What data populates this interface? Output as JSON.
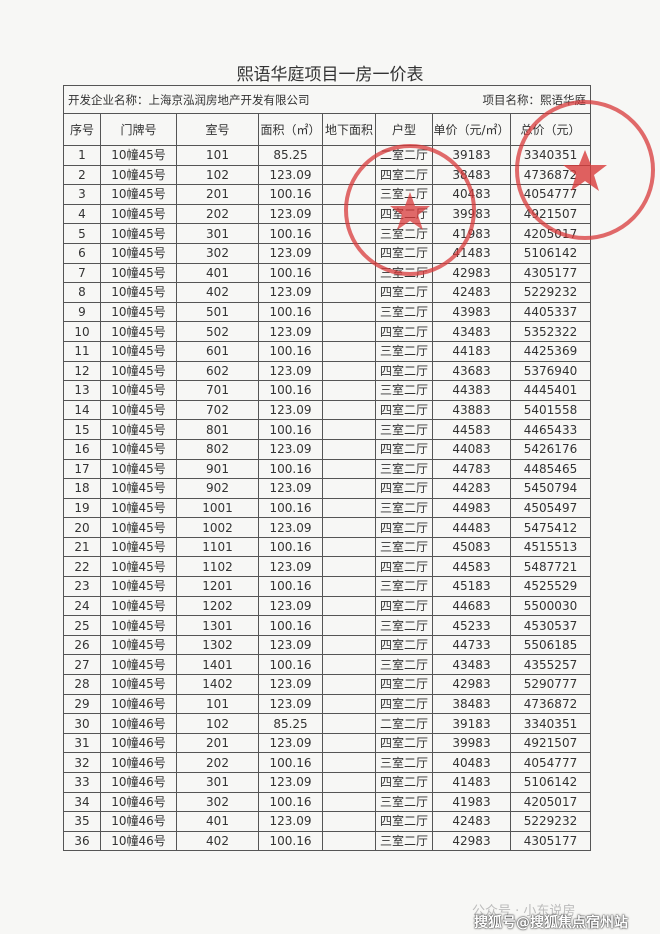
{
  "title": "熙语华庭项目一房一价表",
  "info": {
    "developer_label": "开发企业名称：",
    "developer": "上海京泓润房地产开发有限公司",
    "project_label": "项目名称：",
    "project": "熙语华庭"
  },
  "columns": [
    "序号",
    "门牌号",
    "室号",
    "面积（㎡）",
    "地下面积",
    "户型",
    "单价（元/㎡）",
    "总价（元）"
  ],
  "rows": [
    [
      "1",
      "10幢45号",
      "101",
      "85.25",
      "",
      "二室二厅",
      "39183",
      "3340351"
    ],
    [
      "2",
      "10幢45号",
      "102",
      "123.09",
      "",
      "四室二厅",
      "38483",
      "4736872"
    ],
    [
      "3",
      "10幢45号",
      "201",
      "100.16",
      "",
      "三室二厅",
      "40483",
      "4054777"
    ],
    [
      "4",
      "10幢45号",
      "202",
      "123.09",
      "",
      "四室二厅",
      "39983",
      "4921507"
    ],
    [
      "5",
      "10幢45号",
      "301",
      "100.16",
      "",
      "三室二厅",
      "41983",
      "4205017"
    ],
    [
      "6",
      "10幢45号",
      "302",
      "123.09",
      "",
      "四室二厅",
      "41483",
      "5106142"
    ],
    [
      "7",
      "10幢45号",
      "401",
      "100.16",
      "",
      "三室二厅",
      "42983",
      "4305177"
    ],
    [
      "8",
      "10幢45号",
      "402",
      "123.09",
      "",
      "四室二厅",
      "42483",
      "5229232"
    ],
    [
      "9",
      "10幢45号",
      "501",
      "100.16",
      "",
      "三室二厅",
      "43983",
      "4405337"
    ],
    [
      "10",
      "10幢45号",
      "502",
      "123.09",
      "",
      "四室二厅",
      "43483",
      "5352322"
    ],
    [
      "11",
      "10幢45号",
      "601",
      "100.16",
      "",
      "三室二厅",
      "44183",
      "4425369"
    ],
    [
      "12",
      "10幢45号",
      "602",
      "123.09",
      "",
      "四室二厅",
      "43683",
      "5376940"
    ],
    [
      "13",
      "10幢45号",
      "701",
      "100.16",
      "",
      "三室二厅",
      "44383",
      "4445401"
    ],
    [
      "14",
      "10幢45号",
      "702",
      "123.09",
      "",
      "四室二厅",
      "43883",
      "5401558"
    ],
    [
      "15",
      "10幢45号",
      "801",
      "100.16",
      "",
      "三室二厅",
      "44583",
      "4465433"
    ],
    [
      "16",
      "10幢45号",
      "802",
      "123.09",
      "",
      "四室二厅",
      "44083",
      "5426176"
    ],
    [
      "17",
      "10幢45号",
      "901",
      "100.16",
      "",
      "三室二厅",
      "44783",
      "4485465"
    ],
    [
      "18",
      "10幢45号",
      "902",
      "123.09",
      "",
      "四室二厅",
      "44283",
      "5450794"
    ],
    [
      "19",
      "10幢45号",
      "1001",
      "100.16",
      "",
      "三室二厅",
      "44983",
      "4505497"
    ],
    [
      "20",
      "10幢45号",
      "1002",
      "123.09",
      "",
      "四室二厅",
      "44483",
      "5475412"
    ],
    [
      "21",
      "10幢45号",
      "1101",
      "100.16",
      "",
      "三室二厅",
      "45083",
      "4515513"
    ],
    [
      "22",
      "10幢45号",
      "1102",
      "123.09",
      "",
      "四室二厅",
      "44583",
      "5487721"
    ],
    [
      "23",
      "10幢45号",
      "1201",
      "100.16",
      "",
      "三室二厅",
      "45183",
      "4525529"
    ],
    [
      "24",
      "10幢45号",
      "1202",
      "123.09",
      "",
      "四室二厅",
      "44683",
      "5500030"
    ],
    [
      "25",
      "10幢45号",
      "1301",
      "100.16",
      "",
      "三室二厅",
      "45233",
      "4530537"
    ],
    [
      "26",
      "10幢45号",
      "1302",
      "123.09",
      "",
      "四室二厅",
      "44733",
      "5506185"
    ],
    [
      "27",
      "10幢45号",
      "1401",
      "100.16",
      "",
      "三室二厅",
      "43483",
      "4355257"
    ],
    [
      "28",
      "10幢45号",
      "1402",
      "123.09",
      "",
      "四室二厅",
      "42983",
      "5290777"
    ],
    [
      "29",
      "10幢46号",
      "101",
      "123.09",
      "",
      "四室二厅",
      "38483",
      "4736872"
    ],
    [
      "30",
      "10幢46号",
      "102",
      "85.25",
      "",
      "二室二厅",
      "39183",
      "3340351"
    ],
    [
      "31",
      "10幢46号",
      "201",
      "123.09",
      "",
      "四室二厅",
      "39983",
      "4921507"
    ],
    [
      "32",
      "10幢46号",
      "202",
      "100.16",
      "",
      "三室二厅",
      "40483",
      "4054777"
    ],
    [
      "33",
      "10幢46号",
      "301",
      "123.09",
      "",
      "四室二厅",
      "41483",
      "5106142"
    ],
    [
      "34",
      "10幢46号",
      "302",
      "100.16",
      "",
      "三室二厅",
      "41983",
      "4205017"
    ],
    [
      "35",
      "10幢46号",
      "401",
      "123.09",
      "",
      "四室二厅",
      "42483",
      "5229232"
    ],
    [
      "36",
      "10幢46号",
      "402",
      "100.16",
      "",
      "三室二厅",
      "42983",
      "4305177"
    ]
  ],
  "watermark": {
    "line1": "公众号 · 小东说房",
    "line2": "搜狐号@搜狐焦点宿州站"
  },
  "colors": {
    "stamp": "#d83a3a",
    "border": "#555555"
  }
}
